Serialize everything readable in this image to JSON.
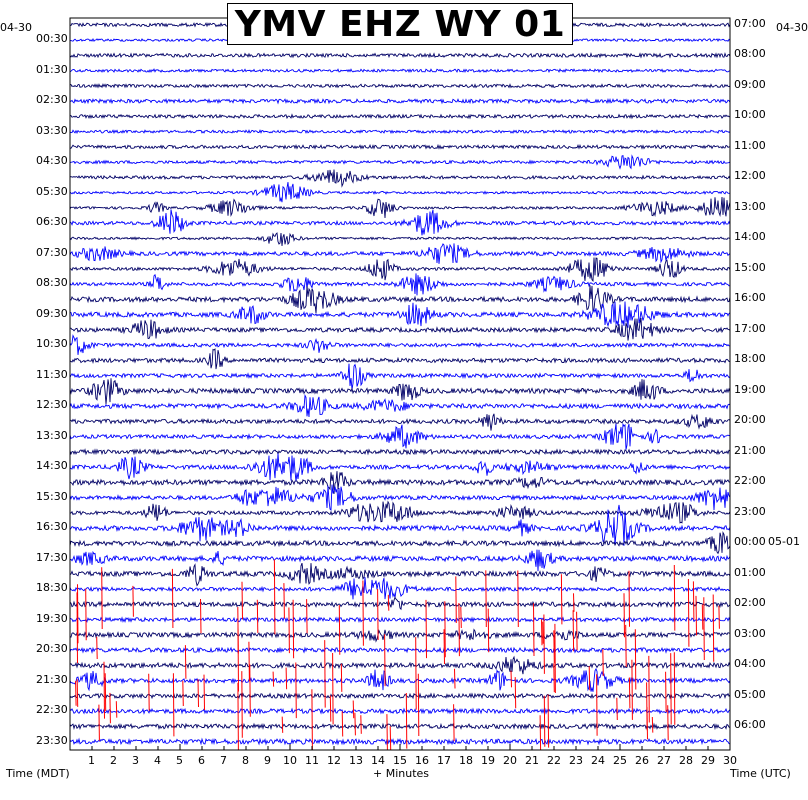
{
  "title": "YMV EHZ WY 01",
  "left_date": "04-30",
  "right_date_top": "04-30",
  "right_date_change": "05-01",
  "x_axis_label": "+ Minutes",
  "left_axis_label": "Time (MDT)",
  "right_axis_label": "Time (UTC)",
  "colors": {
    "trace_a": "#000066",
    "trace_b": "#0000ff",
    "clipped": "#ff0000",
    "background": "#ffffff",
    "axis": "#000000"
  },
  "chart_data": {
    "type": "line",
    "subtype": "helicorder",
    "minutes_per_line": 30,
    "xlim": [
      0,
      30
    ],
    "x_ticks": [
      1,
      2,
      3,
      4,
      5,
      6,
      7,
      8,
      9,
      10,
      11,
      12,
      13,
      14,
      15,
      16,
      17,
      18,
      19,
      20,
      21,
      22,
      23,
      24,
      25,
      26,
      27,
      28,
      29,
      30
    ],
    "left_time_labels": [
      "00:30",
      "01:30",
      "02:30",
      "03:30",
      "04:30",
      "05:30",
      "06:30",
      "07:30",
      "08:30",
      "09:30",
      "10:30",
      "11:30",
      "12:30",
      "13:30",
      "14:30",
      "15:30",
      "16:30",
      "17:30",
      "18:30",
      "19:30",
      "20:30",
      "21:30",
      "22:30",
      "23:30"
    ],
    "right_time_labels": [
      "07:00",
      "08:00",
      "09:00",
      "10:00",
      "11:00",
      "12:00",
      "13:00",
      "14:00",
      "15:00",
      "16:00",
      "17:00",
      "18:00",
      "19:00",
      "20:00",
      "21:00",
      "22:00",
      "23:00",
      "00:00",
      "01:00",
      "02:00",
      "03:00",
      "04:00",
      "05:00",
      "06:00"
    ],
    "trace_count": 48,
    "trace_colors_cycle": [
      "#000066",
      "#0000ff"
    ],
    "grid": false
  }
}
